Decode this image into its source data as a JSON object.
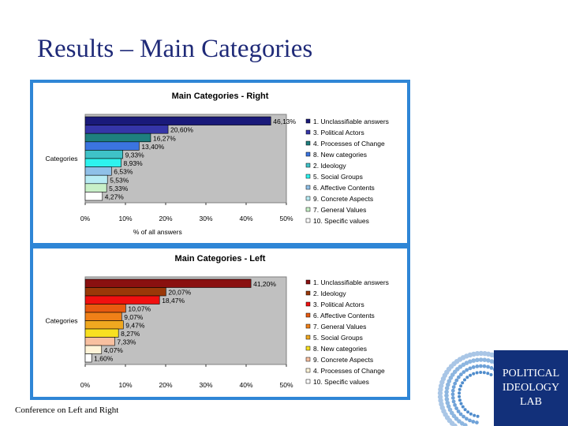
{
  "slide": {
    "title": "Results – Main Categories",
    "footer": "Conference on Left and Right"
  },
  "logo": {
    "lines": [
      "POLITICAL",
      "IDEOLOGY",
      "LAB"
    ]
  },
  "chart_data": [
    {
      "type": "bar",
      "orientation": "horizontal",
      "title": "Main Categories - Right",
      "xlabel": "% of all answers",
      "ylabel": "Categories",
      "xlim": [
        0,
        50
      ],
      "xticks": [
        "0%",
        "10%",
        "20%",
        "30%",
        "40%",
        "50%"
      ],
      "grid": false,
      "legend_placement": "right",
      "series": [
        {
          "name": "1. Unclassifiable answers",
          "value": 46.13,
          "label": "46,13%",
          "color": "#1a1a7a"
        },
        {
          "name": "3. Political Actors",
          "value": 20.6,
          "label": "20,60%",
          "color": "#3535a8"
        },
        {
          "name": "4. Processes of Change",
          "value": 16.27,
          "label": "16,27%",
          "color": "#1e7f7f"
        },
        {
          "name": "8. New categories",
          "value": 13.4,
          "label": "13,40%",
          "color": "#3b74e0"
        },
        {
          "name": "2. Ideology",
          "value": 9.33,
          "label": "9,33%",
          "color": "#3fc2c8"
        },
        {
          "name": "5. Social Groups",
          "value": 8.93,
          "label": "8,93%",
          "color": "#2ef2ee"
        },
        {
          "name": "6. Affective Contents",
          "value": 6.53,
          "label": "6,53%",
          "color": "#8fc0e8"
        },
        {
          "name": "9. Concrete Aspects",
          "value": 5.53,
          "label": "5,53%",
          "color": "#b8ecf4"
        },
        {
          "name": "7. General Values",
          "value": 5.33,
          "label": "5,33%",
          "color": "#c8f0c8"
        },
        {
          "name": "10. Specific values",
          "value": 4.27,
          "label": "4,27%",
          "color": "#ffffff"
        }
      ]
    },
    {
      "type": "bar",
      "orientation": "horizontal",
      "title": "Main Categories - Left",
      "xlabel": "",
      "ylabel": "Categories",
      "xlim": [
        0,
        50
      ],
      "xticks": [
        "0%",
        "10%",
        "20%",
        "30%",
        "40%",
        "50%"
      ],
      "grid": false,
      "legend_placement": "right",
      "series": [
        {
          "name": "1. Unclassifiable answers",
          "value": 41.2,
          "label": "41,20%",
          "color": "#8a1010"
        },
        {
          "name": "2. Ideology",
          "value": 20.07,
          "label": "20,07%",
          "color": "#9a3808"
        },
        {
          "name": "3. Political Actors",
          "value": 18.47,
          "label": "18,47%",
          "color": "#f01010"
        },
        {
          "name": "6. Affective Contents",
          "value": 10.07,
          "label": "10,07%",
          "color": "#e85a10"
        },
        {
          "name": "7. General Values",
          "value": 9.07,
          "label": "9,07%",
          "color": "#f08018"
        },
        {
          "name": "5. Social Groups",
          "value": 9.47,
          "label": "9,47%",
          "color": "#f0a820"
        },
        {
          "name": "8. New categories",
          "value": 8.27,
          "label": "8,27%",
          "color": "#f8e020"
        },
        {
          "name": "9. Concrete Aspects",
          "value": 7.33,
          "label": "7,33%",
          "color": "#f8c0a0"
        },
        {
          "name": "4. Processes of Change",
          "value": 4.07,
          "label": "4,07%",
          "color": "#fff4d8"
        },
        {
          "name": "10. Specific values",
          "value": 1.6,
          "label": "1,60%",
          "color": "#ffffff"
        }
      ]
    }
  ]
}
